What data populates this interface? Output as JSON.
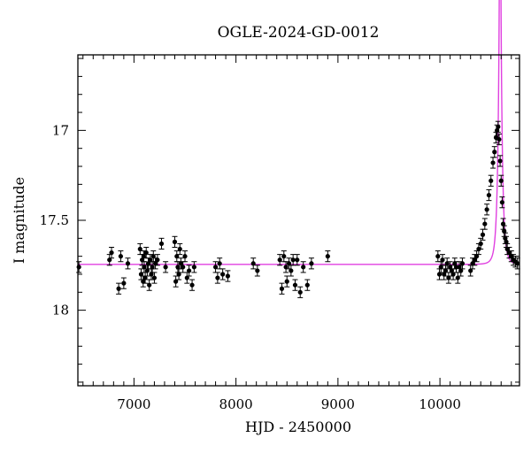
{
  "chart_data": {
    "type": "scatter",
    "title": "OGLE-2024-GD-0012",
    "xlabel": "HJD - 2450000",
    "ylabel": "I magnitude",
    "xlim": [
      6450,
      10780
    ],
    "ylim": [
      18.42,
      16.58
    ],
    "y_inverted": true,
    "grid": false,
    "x_ticks": [
      7000,
      8000,
      9000,
      10000
    ],
    "y_ticks": [
      17,
      17.5,
      18
    ],
    "points_color": "#000000",
    "errorbar_color": "#000000",
    "model_color": "#e040e0",
    "baseline_mag": 17.745,
    "model": {
      "t0": 10590,
      "u0": 0.098,
      "tE": 35,
      "baseline": 17.745
    },
    "series": [
      {
        "kind": "data",
        "x": [
          6460,
          6760,
          6780,
          6850,
          6870,
          6900,
          6940,
          7060,
          7070,
          7080,
          7090,
          7095,
          7100,
          7110,
          7120,
          7130,
          7140,
          7150,
          7160,
          7170,
          7180,
          7190,
          7200,
          7210,
          7230,
          7270,
          7310,
          7400,
          7410,
          7420,
          7430,
          7440,
          7450,
          7460,
          7480,
          7500,
          7520,
          7540,
          7570,
          7590,
          7800,
          7820,
          7840,
          7870,
          7920,
          8170,
          8210,
          8430,
          8450,
          8470,
          8490,
          8500,
          8520,
          8540,
          8560,
          8580,
          8600,
          8630,
          8660,
          8700,
          8740,
          8900,
          9980,
          9995,
          10010,
          10025,
          10040,
          10055,
          10070,
          10085,
          10100,
          10115,
          10130,
          10145,
          10160,
          10175,
          10190,
          10205,
          10220,
          10300,
          10320,
          10340,
          10360,
          10380,
          10400,
          10420,
          10440,
          10460,
          10480,
          10500,
          10520,
          10535,
          10550,
          10560,
          10570,
          10580,
          10590,
          10600,
          10610,
          10620,
          10630,
          10640,
          10650,
          10660,
          10680,
          10700,
          10720,
          10740,
          10760
        ],
        "y": [
          17.76,
          17.72,
          17.68,
          17.88,
          17.7,
          17.85,
          17.74,
          17.66,
          17.8,
          17.72,
          17.84,
          17.7,
          17.76,
          17.82,
          17.68,
          17.78,
          17.74,
          17.86,
          17.72,
          17.8,
          17.76,
          17.7,
          17.82,
          17.74,
          17.72,
          17.63,
          17.76,
          17.62,
          17.84,
          17.7,
          17.76,
          17.8,
          17.66,
          17.74,
          17.76,
          17.7,
          17.82,
          17.78,
          17.86,
          17.76,
          17.76,
          17.82,
          17.74,
          17.8,
          17.81,
          17.74,
          17.78,
          17.72,
          17.88,
          17.7,
          17.76,
          17.84,
          17.74,
          17.78,
          17.72,
          17.86,
          17.72,
          17.9,
          17.76,
          17.86,
          17.74,
          17.7,
          17.7,
          17.8,
          17.76,
          17.72,
          17.8,
          17.78,
          17.74,
          17.82,
          17.76,
          17.78,
          17.8,
          17.74,
          17.76,
          17.82,
          17.76,
          17.78,
          17.74,
          17.78,
          17.74,
          17.72,
          17.7,
          17.66,
          17.63,
          17.58,
          17.52,
          17.44,
          17.36,
          17.28,
          17.18,
          17.12,
          17.04,
          17.0,
          16.98,
          17.05,
          17.17,
          17.28,
          17.4,
          17.52,
          17.56,
          17.6,
          17.62,
          17.66,
          17.68,
          17.7,
          17.72,
          17.73,
          17.74
        ]
      }
    ]
  }
}
